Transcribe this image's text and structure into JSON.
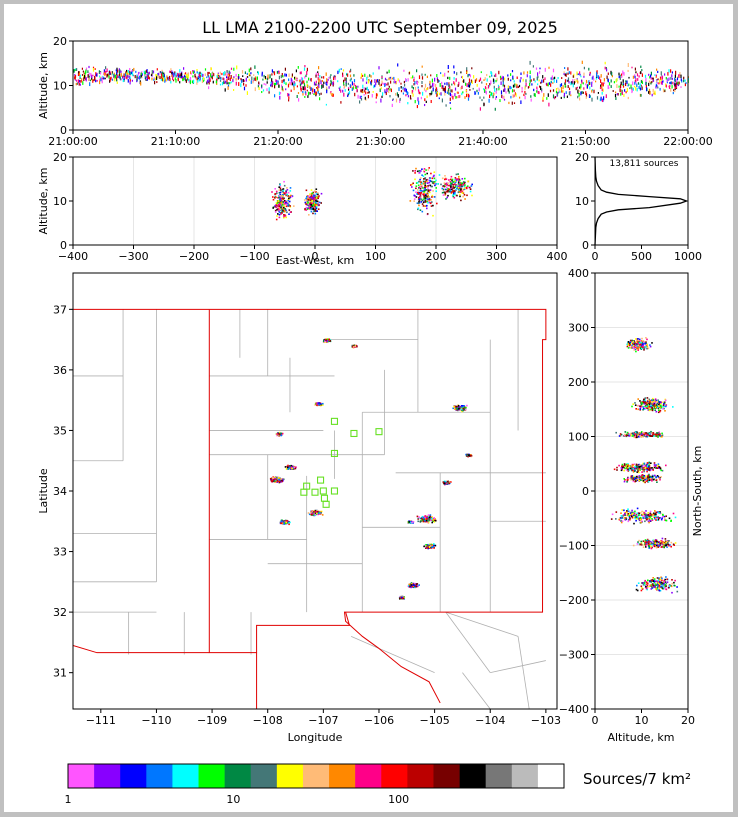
{
  "title": "LL LMA 2100-2200 UTC September 09, 2025",
  "colorbar_label": "Sources/7 km²",
  "colors": {
    "frame": "#000000",
    "state_border": "#e00000",
    "county_line": "#b0b0b0",
    "station": "#66e022"
  },
  "chart_data": [
    {
      "id": "time-height",
      "type": "scatter",
      "ylabel": "Altitude, km",
      "xlabel": "",
      "ylim": [
        0,
        20
      ],
      "xlim": [
        "21:00:00",
        "22:00:00"
      ],
      "x_ticks": [
        "21:00:00",
        "21:10:00",
        "21:20:00",
        "21:30:00",
        "21:40:00",
        "21:50:00",
        "22:00:00"
      ],
      "y_ticks": [
        "0",
        "10",
        "20"
      ],
      "description_bins": [
        {
          "t_min": 0,
          "alt_center": 12.5,
          "spread": 3
        },
        {
          "t_min": 10,
          "alt_center": 12.5,
          "spread": 2
        },
        {
          "t_min": 20,
          "alt_center": 11,
          "spread": 5
        },
        {
          "t_min": 30,
          "alt_center": 10,
          "spread": 6
        },
        {
          "t_min": 40,
          "alt_center": 10,
          "spread": 6
        },
        {
          "t_min": 50,
          "alt_center": 11,
          "spread": 6
        },
        {
          "t_min": 60,
          "alt_center": 11,
          "spread": 4
        }
      ]
    },
    {
      "id": "ew-height",
      "type": "scatter",
      "xlabel": "East-West, km",
      "ylabel": "Altitude, km",
      "xlim": [
        -400,
        400
      ],
      "ylim": [
        0,
        20
      ],
      "x_ticks": [
        "−400",
        "−300",
        "−200",
        "−100",
        "0",
        "100",
        "200",
        "300",
        "400"
      ],
      "y_ticks": [
        "0",
        "10",
        "20"
      ],
      "clusters": [
        {
          "x": -55,
          "alt": 10,
          "dx": 12,
          "dz": 3
        },
        {
          "x": -5,
          "alt": 10,
          "dx": 10,
          "dz": 2
        },
        {
          "x": 180,
          "alt": 12.5,
          "dx": 18,
          "dz": 4
        },
        {
          "x": 230,
          "alt": 13.5,
          "dx": 20,
          "dz": 2
        }
      ]
    },
    {
      "id": "altitude-histogram",
      "type": "line",
      "annotation": "13,811 sources",
      "xlim": [
        0,
        1200
      ],
      "ylim": [
        0,
        20
      ],
      "x_ticks": [
        "0",
        "500",
        "1000"
      ],
      "y_ticks": [
        "0",
        "10",
        "20"
      ],
      "x": [
        0,
        5,
        10,
        20,
        40,
        80,
        150,
        300,
        700,
        1100,
        1180,
        1100,
        700,
        300,
        150,
        80,
        40,
        20,
        10,
        5,
        0
      ],
      "alt": [
        0,
        2,
        4,
        5,
        6,
        7,
        7.5,
        8,
        8.5,
        9.5,
        10,
        10.5,
        11,
        11.5,
        12,
        12.5,
        13.5,
        14.5,
        15.5,
        17,
        20
      ]
    },
    {
      "id": "plan-view",
      "type": "scatter",
      "xlabel": "Longitude",
      "ylabel": "Latitude",
      "xlim": [
        -111.5,
        -102.8
      ],
      "ylim": [
        30.4,
        37.6
      ],
      "x_ticks": [
        "−111",
        "−110",
        "−109",
        "−108",
        "−107",
        "−106",
        "−105",
        "−104",
        "−103"
      ],
      "y_ticks": [
        "31",
        "32",
        "33",
        "34",
        "35",
        "36",
        "37"
      ],
      "clusters": [
        {
          "lon": -107.85,
          "lat": 34.2,
          "r": 0.1
        },
        {
          "lon": -107.6,
          "lat": 34.4,
          "r": 0.07
        },
        {
          "lon": -107.7,
          "lat": 33.5,
          "r": 0.07
        },
        {
          "lon": -107.15,
          "lat": 33.65,
          "r": 0.09
        },
        {
          "lon": -107.8,
          "lat": 34.95,
          "r": 0.05
        },
        {
          "lon": -107.1,
          "lat": 35.45,
          "r": 0.05
        },
        {
          "lon": -106.95,
          "lat": 36.5,
          "r": 0.05
        },
        {
          "lon": -106.45,
          "lat": 36.4,
          "r": 0.04
        },
        {
          "lon": -105.15,
          "lat": 33.55,
          "r": 0.13
        },
        {
          "lon": -105.1,
          "lat": 33.1,
          "r": 0.08
        },
        {
          "lon": -105.4,
          "lat": 32.45,
          "r": 0.08
        },
        {
          "lon": -105.6,
          "lat": 32.25,
          "r": 0.04
        },
        {
          "lon": -104.55,
          "lat": 35.38,
          "r": 0.09
        },
        {
          "lon": -104.8,
          "lat": 34.15,
          "r": 0.06
        },
        {
          "lon": -104.4,
          "lat": 34.6,
          "r": 0.04
        },
        {
          "lon": -105.45,
          "lat": 33.5,
          "r": 0.04
        }
      ],
      "stations": [
        [
          -106.8,
          35.15
        ],
        [
          -106.45,
          34.95
        ],
        [
          -106.0,
          34.98
        ],
        [
          -106.8,
          34.62
        ],
        [
          -107.3,
          34.08
        ],
        [
          -107.05,
          34.18
        ],
        [
          -107.0,
          34.0
        ],
        [
          -106.8,
          34.0
        ],
        [
          -107.15,
          33.98
        ],
        [
          -107.35,
          33.98
        ],
        [
          -106.98,
          33.88
        ],
        [
          -106.95,
          33.78
        ]
      ]
    },
    {
      "id": "ns-height",
      "type": "scatter",
      "xlabel": "Altitude, km",
      "ylabel": "North-South, km",
      "xlim": [
        0,
        20
      ],
      "ylim": [
        -400,
        400
      ],
      "x_ticks": [
        "0",
        "10",
        "20"
      ],
      "y_ticks": [
        "−400",
        "−300",
        "−200",
        "−100",
        "0",
        "100",
        "200",
        "300",
        "400"
      ],
      "clusters": [
        {
          "ns": 270,
          "alt": 9,
          "dns": 8,
          "dz": 2
        },
        {
          "ns": 160,
          "alt": 12,
          "dns": 10,
          "dz": 3
        },
        {
          "ns": 105,
          "alt": 10,
          "dns": 4,
          "dz": 4
        },
        {
          "ns": 45,
          "alt": 9.5,
          "dns": 6,
          "dz": 4
        },
        {
          "ns": 25,
          "alt": 10,
          "dns": 5,
          "dz": 3
        },
        {
          "ns": -45,
          "alt": 10.5,
          "dns": 10,
          "dz": 5
        },
        {
          "ns": -95,
          "alt": 13,
          "dns": 6,
          "dz": 3
        },
        {
          "ns": -170,
          "alt": 13,
          "dns": 10,
          "dz": 3
        }
      ]
    },
    {
      "id": "colorbar",
      "type": "heatmap",
      "tick_labels": [
        "1",
        "10",
        "100"
      ],
      "tick_values": [
        1,
        10,
        100
      ],
      "range": [
        1,
        1000
      ],
      "colors": [
        "#ff55ff",
        "#8800ff",
        "#0000ff",
        "#0077ff",
        "#00ffff",
        "#00ff00",
        "#008844",
        "#447777",
        "#ffff00",
        "#ffbb77",
        "#ff8800",
        "#ff0088",
        "#ff0000",
        "#bb0000",
        "#770000",
        "#000000",
        "#777777",
        "#bbbbbb",
        "#ffffff"
      ]
    }
  ]
}
